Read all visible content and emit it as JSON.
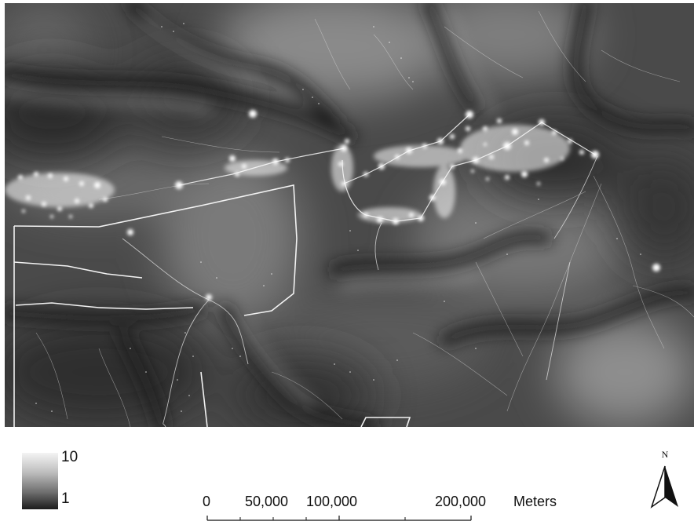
{
  "legend": {
    "max_label": "10",
    "min_label": "1",
    "gradient_colors": [
      "#f4f4f4",
      "#1c1c1c"
    ]
  },
  "scale_bar": {
    "labels": [
      "0",
      "50,000",
      "100,000",
      "200,000"
    ],
    "unit_label": "Meters"
  },
  "north_arrow": {
    "letter": "N",
    "icon": "north-arrow-icon"
  },
  "colors": {
    "raster_dark": "#1e1e1e",
    "raster_light": "#a8a8a8",
    "features": "#ffffff"
  }
}
